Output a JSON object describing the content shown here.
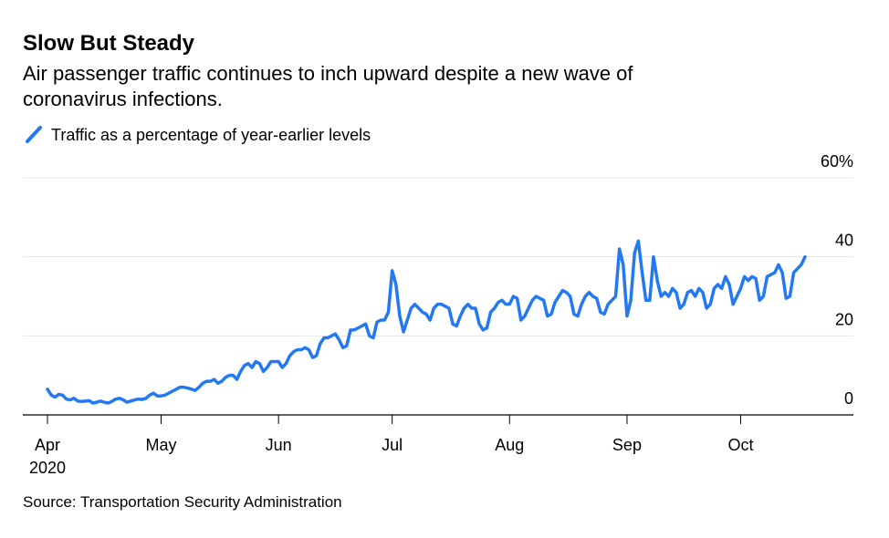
{
  "chart_data": {
    "type": "line",
    "title": "Slow But Steady",
    "subtitle": [
      "Air passenger traffic continues to inch upward despite a new wave of",
      "coronavirus infections."
    ],
    "source": "Source: Transportation Security Administration",
    "x_year": "2020",
    "categories": [
      "Apr",
      null,
      null,
      null,
      null,
      null,
      null,
      null,
      null,
      null,
      null,
      null,
      null,
      null,
      null,
      null,
      null,
      null,
      null,
      null,
      null,
      null,
      null,
      null,
      null,
      null,
      null,
      null,
      null,
      null,
      "May",
      null,
      null,
      null,
      null,
      null,
      null,
      null,
      null,
      null,
      null,
      null,
      null,
      null,
      null,
      null,
      null,
      null,
      null,
      null,
      null,
      null,
      null,
      null,
      null,
      null,
      null,
      null,
      null,
      null,
      null,
      "Jun",
      null,
      null,
      null,
      null,
      null,
      null,
      null,
      null,
      null,
      null,
      null,
      null,
      null,
      null,
      null,
      null,
      null,
      null,
      null,
      null,
      null,
      null,
      null,
      null,
      null,
      null,
      null,
      null,
      null,
      "Jul",
      null,
      null,
      null,
      null,
      null,
      null,
      null,
      null,
      null,
      null,
      null,
      null,
      null,
      null,
      null,
      null,
      null,
      null,
      null,
      null,
      null,
      null,
      null,
      null,
      null,
      null,
      null,
      null,
      null,
      null,
      "Aug",
      null,
      null,
      null,
      null,
      null,
      null,
      null,
      null,
      null,
      null,
      null,
      null,
      null,
      null,
      null,
      null,
      null,
      null,
      null,
      null,
      null,
      null,
      null,
      null,
      null,
      null,
      null,
      null,
      null,
      null,
      "Sep",
      null,
      null,
      null,
      null,
      null,
      null,
      null,
      null,
      null,
      null,
      null,
      null,
      null,
      null,
      null,
      null,
      null,
      null,
      null,
      null,
      null,
      null,
      null,
      null,
      null,
      null,
      null,
      null,
      null,
      "Oct",
      null,
      null,
      null,
      null,
      null,
      null,
      null,
      null,
      null,
      null,
      null,
      null,
      null,
      null,
      null,
      null,
      null
    ],
    "series": [
      {
        "name": "Traffic as a percentage of year-earlier levels",
        "color": "#2479f2",
        "values": [
          6.5,
          5,
          4.5,
          5.2,
          5,
          4,
          3.8,
          4.2,
          3.5,
          3.4,
          3.5,
          3.6,
          3,
          3.2,
          3.5,
          3.2,
          3,
          3.4,
          4,
          4.2,
          3.8,
          3.2,
          3.5,
          3.8,
          4,
          3.9,
          4.2,
          5,
          5.5,
          4.8,
          4.8,
          5,
          5.5,
          6,
          6.5,
          7,
          7,
          6.8,
          6.5,
          6.2,
          7,
          8,
          8.5,
          8.5,
          9,
          8,
          8.5,
          9.5,
          10,
          10,
          9,
          11,
          12.5,
          13,
          12,
          13.5,
          13,
          11,
          12,
          13.5,
          13.5,
          13.5,
          12,
          13,
          15,
          16,
          16.5,
          16.5,
          17,
          16.5,
          14.5,
          15,
          18,
          19.5,
          19.5,
          20,
          20.5,
          19,
          17,
          17.5,
          21.5,
          21.5,
          22,
          22.5,
          23,
          20,
          19.5,
          23.5,
          24,
          24,
          26,
          36.5,
          33,
          25,
          21,
          24,
          27,
          28,
          27,
          26,
          25.5,
          24,
          27,
          28,
          28,
          27.5,
          27,
          23,
          22.5,
          25,
          27,
          28,
          27,
          27,
          23,
          21.5,
          22,
          26,
          27,
          28.5,
          29,
          28,
          28,
          30,
          29.5,
          24,
          25,
          27,
          29,
          30,
          29.5,
          29,
          25,
          25.5,
          28.5,
          30,
          31.5,
          31,
          30,
          25.5,
          25,
          28,
          30,
          31,
          30,
          29.5,
          26,
          25.5,
          28,
          29,
          30,
          42,
          38,
          25,
          29,
          41,
          44,
          36,
          29,
          29,
          40,
          34,
          30,
          31,
          30,
          32,
          31,
          27,
          28,
          31,
          31.5,
          30,
          32,
          31,
          27,
          28,
          32,
          33,
          32,
          35,
          33,
          28,
          30,
          32,
          35,
          34,
          35,
          34.5,
          29,
          30,
          35,
          35.5,
          36,
          38,
          36,
          29.5,
          30,
          36,
          37,
          38,
          40
        ]
      }
    ],
    "ylim": [
      0,
      60
    ],
    "yticks": [
      0,
      20,
      40,
      {
        "value": 60,
        "label": "60%"
      }
    ],
    "grid": true
  }
}
